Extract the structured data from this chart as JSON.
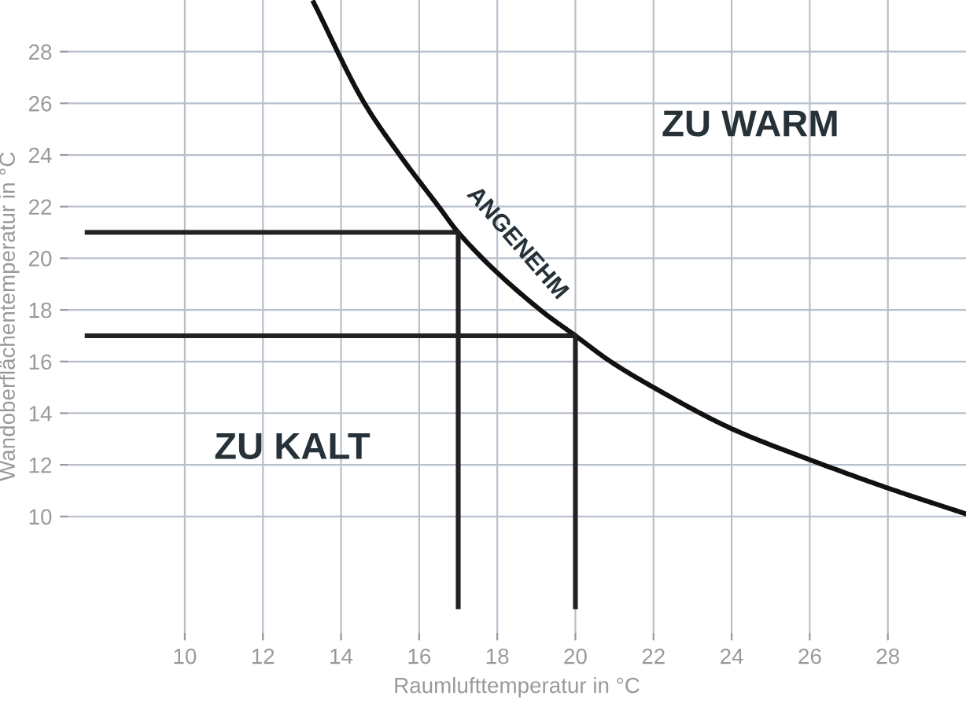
{
  "chart_data": {
    "type": "line",
    "xlabel": "Raumlufttemperatur in °C",
    "ylabel": "Wandoberflächentemperatur in °C",
    "xlim": [
      7,
      30
    ],
    "ylim": [
      5.5,
      30
    ],
    "xticks": [
      10,
      12,
      14,
      16,
      18,
      20,
      22,
      24,
      26,
      28
    ],
    "yticks": [
      10,
      12,
      14,
      16,
      18,
      20,
      22,
      24,
      26,
      28
    ],
    "grid": true,
    "line_style": "solid",
    "marker": "none",
    "series": [
      {
        "color": "#111111",
        "x": [
          13.3,
          14.6,
          15.5,
          16.5,
          17,
          19.1,
          20,
          20.9,
          22,
          24,
          26,
          28,
          30
        ],
        "values": [
          29.9,
          26,
          24,
          22,
          21,
          18,
          17,
          16,
          15,
          13.4,
          12.2,
          11.1,
          10.1
        ]
      },
      {
        "color": "#222222",
        "x": [
          7.5,
          17,
          17
        ],
        "values": [
          21,
          21,
          6.5
        ]
      },
      {
        "color": "#222222",
        "x": [
          7.5,
          20,
          20
        ],
        "values": [
          17,
          17,
          6.5
        ]
      }
    ],
    "annotations": [
      "ZU WARM",
      "ANGENEHM",
      "ZU KALT"
    ]
  }
}
